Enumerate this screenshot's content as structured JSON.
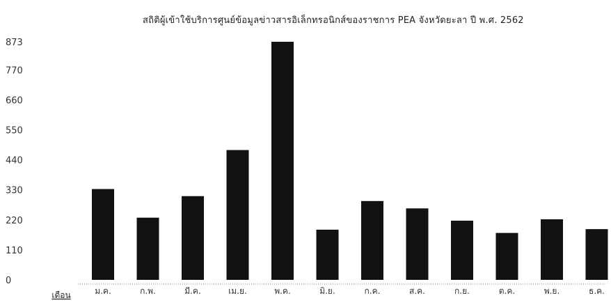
{
  "colors": {
    "bar": "#111111",
    "axis_text": "#333333",
    "baseline": "#888888"
  },
  "chart_data": {
    "type": "bar",
    "title": "สถิติผู้เข้าใช้บริการศูนย์ข้อมูลข่าวสารอิเล็กทรอนิกส์ของราชการ PEA จังหวัดยะลา ปี พ.ศ. 2562",
    "xlabel": "เดือน",
    "ylabel": "",
    "ylim": [
      0,
      873
    ],
    "yticks": [
      0,
      110,
      220,
      330,
      440,
      550,
      660,
      770,
      873
    ],
    "categories": [
      "ม.ค.",
      "ก.พ.",
      "มี.ค.",
      "เม.ย.",
      "พ.ค.",
      "มิ.ย.",
      "ก.ค.",
      "ส.ค.",
      "ก.ย.",
      "ต.ค.",
      "พ.ย.",
      "ธ.ค."
    ],
    "values": [
      333,
      228,
      307,
      476,
      873,
      184,
      289,
      262,
      217,
      172,
      222,
      186
    ],
    "grid": false,
    "legend": "none"
  }
}
